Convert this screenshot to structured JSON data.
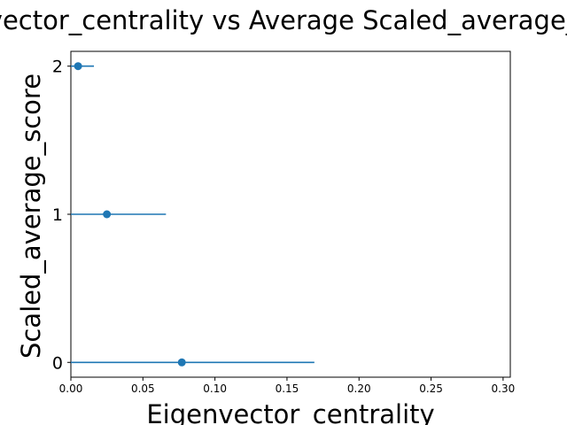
{
  "chart_data": {
    "type": "scatter",
    "title": "Eigenvector_centrality vs Average Scaled_average_score",
    "xlabel": "Eigenvector_centrality",
    "ylabel": "Scaled_average_score",
    "xlim": [
      0.0,
      0.305
    ],
    "ylim": [
      -0.1,
      2.1
    ],
    "x_ticks": [
      0.0,
      0.05,
      0.1,
      0.15,
      0.2,
      0.25,
      0.3
    ],
    "x_tick_labels": [
      "0.00",
      "0.05",
      "0.10",
      "0.15",
      "0.20",
      "0.25",
      "0.30"
    ],
    "y_ticks": [
      0,
      1,
      2
    ],
    "y_tick_labels": [
      "0",
      "1",
      "2"
    ],
    "grid": false,
    "error_bars": "horizontal",
    "points": [
      {
        "y": 0,
        "x": 0.077,
        "xerr": 0.092
      },
      {
        "y": 1,
        "x": 0.025,
        "xerr": 0.041
      },
      {
        "y": 2,
        "x": 0.005,
        "xerr": 0.011
      }
    ],
    "color": "#1f77b4"
  }
}
